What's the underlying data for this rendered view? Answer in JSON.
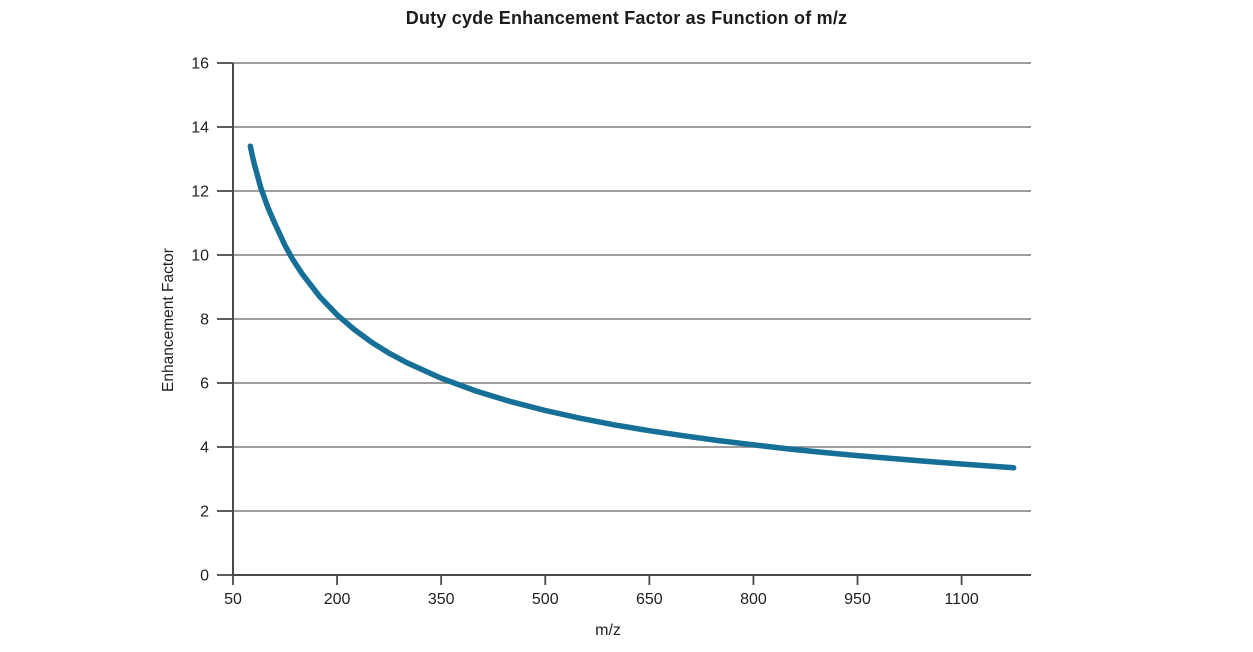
{
  "chart_data": {
    "type": "line",
    "title": "Duty cyde Enhancement Factor as Function of m/z",
    "xlabel": "m/z",
    "ylabel": "Enhancement Factor",
    "xlim": [
      50,
      1200
    ],
    "ylim": [
      0,
      16
    ],
    "x_ticks": [
      50,
      200,
      350,
      500,
      650,
      800,
      950,
      1100
    ],
    "y_ticks": [
      0,
      2,
      4,
      6,
      8,
      10,
      12,
      14,
      16
    ],
    "grid": "horizontal",
    "legend": "none",
    "series": [
      {
        "name": "Enhancement Factor",
        "color": "#156f96",
        "points": [
          [
            75,
            13.4
          ],
          [
            80,
            12.9
          ],
          [
            85,
            12.5
          ],
          [
            90,
            12.1
          ],
          [
            100,
            11.5
          ],
          [
            110,
            11.0
          ],
          [
            125,
            10.3
          ],
          [
            135,
            9.9
          ],
          [
            150,
            9.4
          ],
          [
            175,
            8.7
          ],
          [
            200,
            8.13
          ],
          [
            225,
            7.67
          ],
          [
            250,
            7.27
          ],
          [
            275,
            6.93
          ],
          [
            300,
            6.64
          ],
          [
            350,
            6.15
          ],
          [
            400,
            5.75
          ],
          [
            450,
            5.42
          ],
          [
            500,
            5.14
          ],
          [
            550,
            4.9
          ],
          [
            600,
            4.69
          ],
          [
            650,
            4.51
          ],
          [
            700,
            4.35
          ],
          [
            750,
            4.2
          ],
          [
            800,
            4.07
          ],
          [
            850,
            3.94
          ],
          [
            900,
            3.83
          ],
          [
            950,
            3.73
          ],
          [
            1000,
            3.64
          ],
          [
            1050,
            3.55
          ],
          [
            1100,
            3.47
          ],
          [
            1150,
            3.39
          ],
          [
            1175,
            3.35
          ]
        ]
      }
    ]
  },
  "colors": {
    "line": "#156f96",
    "grid": "#7d7d7d",
    "axis": "#4a4a4a",
    "text": "#1f1f1f",
    "background": "#ffffff"
  }
}
